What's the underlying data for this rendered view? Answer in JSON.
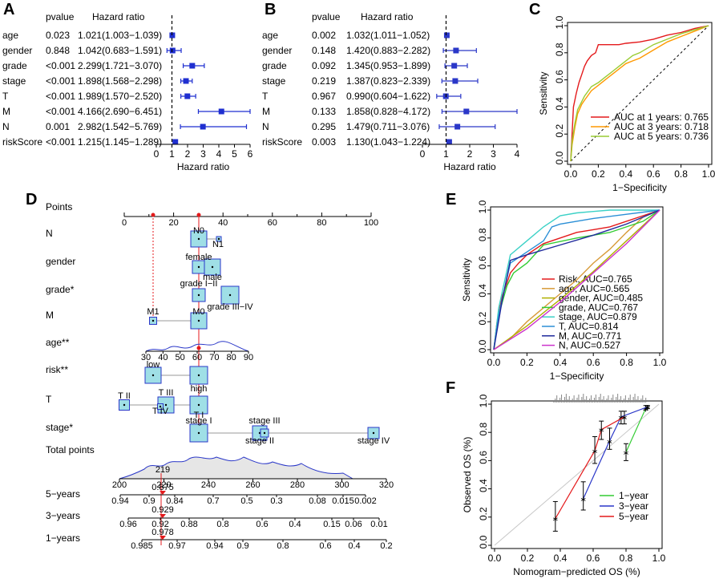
{
  "panels": {
    "A": "A",
    "B": "B",
    "C": "C",
    "D": "D",
    "E": "E",
    "F": "F"
  },
  "chart_data": [
    {
      "type": "forest",
      "panel": "A",
      "col_pvalue": "pvalue",
      "col_hr": "Hazard ratio",
      "xlabel": "Hazard ratio",
      "ticks": [
        0,
        1,
        2,
        3,
        4,
        5,
        6
      ],
      "xlim": [
        0,
        6
      ],
      "rows": [
        {
          "label": "age",
          "p": "0.023",
          "hr_text": "1.021(1.003−1.039)",
          "hr": 1.021,
          "lo": 1.003,
          "hi": 1.039
        },
        {
          "label": "gender",
          "p": "0.848",
          "hr_text": "1.042(0.683−1.591)",
          "hr": 1.042,
          "lo": 0.683,
          "hi": 1.591
        },
        {
          "label": "grade",
          "p": "<0.001",
          "hr_text": "2.299(1.721−3.070)",
          "hr": 2.299,
          "lo": 1.721,
          "hi": 3.07
        },
        {
          "label": "stage",
          "p": "<0.001",
          "hr_text": "1.898(1.568−2.298)",
          "hr": 1.898,
          "lo": 1.568,
          "hi": 2.298
        },
        {
          "label": "T",
          "p": "<0.001",
          "hr_text": "1.989(1.570−2.520)",
          "hr": 1.989,
          "lo": 1.57,
          "hi": 2.52
        },
        {
          "label": "M",
          "p": "<0.001",
          "hr_text": "4.166(2.690−6.451)",
          "hr": 4.166,
          "lo": 2.69,
          "hi": 6.451
        },
        {
          "label": "N",
          "p": "0.001",
          "hr_text": "2.982(1.542−5.769)",
          "hr": 2.982,
          "lo": 1.542,
          "hi": 5.769
        },
        {
          "label": "riskScore",
          "p": "<0.001",
          "hr_text": "1.215(1.145−1.289)",
          "hr": 1.215,
          "lo": 1.145,
          "hi": 1.289
        }
      ]
    },
    {
      "type": "forest",
      "panel": "B",
      "col_pvalue": "pvalue",
      "col_hr": "Hazard ratio",
      "xlabel": "Hazard ratio",
      "ticks": [
        0,
        1,
        2,
        3,
        4
      ],
      "xlim": [
        0,
        4
      ],
      "rows": [
        {
          "label": "age",
          "p": "0.002",
          "hr_text": "1.032(1.011−1.052)",
          "hr": 1.032,
          "lo": 1.011,
          "hi": 1.052
        },
        {
          "label": "gender",
          "p": "0.148",
          "hr_text": "1.420(0.883−2.282)",
          "hr": 1.42,
          "lo": 0.883,
          "hi": 2.282
        },
        {
          "label": "grade",
          "p": "0.092",
          "hr_text": "1.345(0.953−1.899)",
          "hr": 1.345,
          "lo": 0.953,
          "hi": 1.899
        },
        {
          "label": "stage",
          "p": "0.219",
          "hr_text": "1.387(0.823−2.339)",
          "hr": 1.387,
          "lo": 0.823,
          "hi": 2.339
        },
        {
          "label": "T",
          "p": "0.967",
          "hr_text": "0.990(0.604−1.622)",
          "hr": 0.99,
          "lo": 0.604,
          "hi": 1.622
        },
        {
          "label": "M",
          "p": "0.133",
          "hr_text": "1.858(0.828−4.172)",
          "hr": 1.858,
          "lo": 0.828,
          "hi": 4.172
        },
        {
          "label": "N",
          "p": "0.295",
          "hr_text": "1.479(0.711−3.076)",
          "hr": 1.479,
          "lo": 0.711,
          "hi": 3.076
        },
        {
          "label": "riskScore",
          "p": "0.003",
          "hr_text": "1.130(1.043−1.224)",
          "hr": 1.13,
          "lo": 1.043,
          "hi": 1.224
        }
      ]
    },
    {
      "type": "line",
      "panel": "C",
      "xlabel": "1−Specificity",
      "ylabel": "Sensitivity",
      "ticks": [
        "0.0",
        "0.2",
        "0.4",
        "0.6",
        "0.8",
        "1.0"
      ],
      "xlim": [
        0,
        1
      ],
      "ylim": [
        0,
        1
      ],
      "series": [
        {
          "name": "AUC at 1 years: 0.765",
          "color": "#e41a1c",
          "x": [
            0,
            0.01,
            0.02,
            0.04,
            0.06,
            0.08,
            0.1,
            0.12,
            0.15,
            0.18,
            0.2,
            0.25,
            0.3,
            0.35,
            0.4,
            0.5,
            0.6,
            0.7,
            0.8,
            0.9,
            1
          ],
          "y": [
            0,
            0.2,
            0.4,
            0.5,
            0.58,
            0.64,
            0.7,
            0.74,
            0.78,
            0.8,
            0.86,
            0.86,
            0.86,
            0.86,
            0.87,
            0.88,
            0.9,
            0.93,
            0.95,
            0.98,
            1
          ]
        },
        {
          "name": "AUC at 3 years: 0.718",
          "color": "#ff9900",
          "x": [
            0,
            0.01,
            0.03,
            0.05,
            0.08,
            0.1,
            0.15,
            0.2,
            0.25,
            0.3,
            0.35,
            0.4,
            0.45,
            0.5,
            0.6,
            0.7,
            0.8,
            0.9,
            1
          ],
          "y": [
            0,
            0.12,
            0.25,
            0.35,
            0.42,
            0.45,
            0.52,
            0.56,
            0.6,
            0.64,
            0.68,
            0.72,
            0.74,
            0.76,
            0.82,
            0.88,
            0.92,
            0.96,
            1
          ]
        },
        {
          "name": "AUC at 5 years: 0.736",
          "color": "#99cc33",
          "x": [
            0,
            0.01,
            0.03,
            0.05,
            0.08,
            0.1,
            0.15,
            0.2,
            0.25,
            0.3,
            0.35,
            0.4,
            0.45,
            0.5,
            0.6,
            0.7,
            0.8,
            0.9,
            1
          ],
          "y": [
            0,
            0.15,
            0.28,
            0.38,
            0.44,
            0.48,
            0.55,
            0.58,
            0.62,
            0.66,
            0.7,
            0.74,
            0.78,
            0.8,
            0.86,
            0.9,
            0.94,
            0.97,
            1
          ]
        }
      ]
    },
    {
      "type": "nomogram",
      "panel": "D",
      "rows": {
        "points": "Points",
        "N": "N",
        "gender": "gender",
        "grade": "grade*",
        "M": "M",
        "age": "age**",
        "risk": "risk**",
        "T": "T",
        "stage": "stage*",
        "total": "Total points",
        "y5": "5−years",
        "y3": "3−years",
        "y1": "1−years"
      },
      "points_ticks": [
        "0",
        "20",
        "40",
        "60",
        "80",
        "100"
      ],
      "age_ticks": [
        "30",
        "40",
        "50",
        "60",
        "70",
        "80",
        "90"
      ],
      "total_ticks": [
        "200",
        "220",
        "240",
        "260",
        "280",
        "300",
        "320"
      ],
      "y5_ticks": [
        "0.94",
        "0.9",
        "0.84",
        "0.7",
        "0.5",
        "0.3",
        "0.08",
        "0.015",
        "0.002"
      ],
      "y3_ticks": [
        "0.96",
        "0.92",
        "0.88",
        "0.8",
        "0.6",
        "0.4",
        "0.15",
        "0.06",
        "0.01"
      ],
      "y1_ticks": [
        "0.985",
        "0.97",
        "0.94",
        "0.9",
        "0.8",
        "0.6",
        "0.4",
        "0.2"
      ],
      "level_labels": {
        "N0": "N0",
        "N1": "N1",
        "female": "female",
        "male": "male",
        "grade_iii": "grade I−II",
        "grade_iiiiv": "grade III−IV",
        "M1": "M1",
        "M0": "M0",
        "low": "low",
        "high": "high",
        "TII": "T II",
        "TIII": "T III",
        "TIV": "T IV",
        "TI": "T I",
        "stageI": "stage I",
        "stageII": "stage II",
        "stageIII": "stage III",
        "stageIV": "stage IV"
      },
      "patient": {
        "total": "219",
        "y5": "0.875",
        "y3": "0.929",
        "y1": "0.978"
      }
    },
    {
      "type": "line",
      "panel": "E",
      "xlabel": "1−Specificity",
      "ylabel": "Sensitivity",
      "ticks": [
        "0.0",
        "0.2",
        "0.4",
        "0.6",
        "0.8",
        "1.0"
      ],
      "xlim": [
        0,
        1
      ],
      "ylim": [
        0,
        1
      ],
      "series": [
        {
          "name": "Risk, AUC=0.765",
          "color": "#e41a1c",
          "x": [
            0,
            0.02,
            0.05,
            0.08,
            0.1,
            0.15,
            0.2,
            0.3,
            0.4,
            0.5,
            0.6,
            0.7,
            0.8,
            0.9,
            1
          ],
          "y": [
            0,
            0.2,
            0.38,
            0.48,
            0.55,
            0.62,
            0.68,
            0.76,
            0.8,
            0.84,
            0.86,
            0.88,
            0.92,
            0.96,
            1
          ]
        },
        {
          "name": "age, AUC=0.565",
          "color": "#d79b3a",
          "x": [
            0,
            0.1,
            0.2,
            0.3,
            0.4,
            0.5,
            0.6,
            0.7,
            0.8,
            0.9,
            1
          ],
          "y": [
            0,
            0.08,
            0.2,
            0.3,
            0.4,
            0.5,
            0.62,
            0.72,
            0.84,
            0.95,
            1
          ]
        },
        {
          "name": "gender, AUC=0.485",
          "color": "#b0b000",
          "x": [
            0,
            0.2,
            0.4,
            0.6,
            0.8,
            1
          ],
          "y": [
            0,
            0.17,
            0.36,
            0.56,
            0.78,
            1
          ]
        },
        {
          "name": "grade, AUC=0.767",
          "color": "#33cc33",
          "x": [
            0,
            0.03,
            0.08,
            0.12,
            0.2,
            0.3,
            0.5,
            0.7,
            0.9,
            1
          ],
          "y": [
            0,
            0.25,
            0.46,
            0.55,
            0.62,
            0.75,
            0.8,
            0.84,
            0.92,
            1
          ]
        },
        {
          "name": "stage, AUC=0.879",
          "color": "#3bd1c6",
          "x": [
            0,
            0.03,
            0.1,
            0.2,
            0.3,
            0.4,
            0.5,
            0.6,
            0.7,
            0.8,
            1
          ],
          "y": [
            0,
            0.3,
            0.68,
            0.78,
            0.88,
            0.96,
            0.98,
            0.99,
            1,
            1,
            1
          ]
        },
        {
          "name": "T, AUC=0.814",
          "color": "#2a8fd6",
          "x": [
            0,
            0.03,
            0.1,
            0.2,
            0.3,
            0.35,
            0.4,
            0.6,
            0.8,
            1
          ],
          "y": [
            0,
            0.25,
            0.62,
            0.7,
            0.78,
            0.88,
            0.9,
            0.94,
            0.97,
            1
          ]
        },
        {
          "name": "M, AUC=0.771",
          "color": "#1f2a9c",
          "x": [
            0,
            0.05,
            0.1,
            0.2,
            0.4,
            0.6,
            0.8,
            1
          ],
          "y": [
            0,
            0.35,
            0.64,
            0.68,
            0.75,
            0.82,
            0.9,
            1
          ]
        },
        {
          "name": "N, AUC=0.527",
          "color": "#cc33cc",
          "x": [
            0,
            0.2,
            0.4,
            0.6,
            0.8,
            1
          ],
          "y": [
            0,
            0.15,
            0.34,
            0.55,
            0.76,
            1
          ]
        }
      ]
    },
    {
      "type": "scatter",
      "panel": "F",
      "xlabel": "Nomogram−predicted OS (%)",
      "ylabel": "Observed OS (%)",
      "ticks": [
        "0.0",
        "0.2",
        "0.4",
        "0.6",
        "0.8",
        "1.0"
      ],
      "xlim": [
        0,
        1
      ],
      "ylim": [
        0,
        1
      ],
      "series": [
        {
          "name": "1−year",
          "color": "#33cc33",
          "x": [
            0.8,
            0.92,
            0.93
          ],
          "y": [
            0.66,
            0.97,
            0.98
          ],
          "lo": [
            0.6,
            0.96,
            0.97
          ],
          "hi": [
            0.72,
            0.99,
            0.99
          ]
        },
        {
          "name": "3−year",
          "color": "#2a37c8",
          "x": [
            0.54,
            0.7,
            0.77,
            0.93
          ],
          "y": [
            0.33,
            0.74,
            0.91,
            0.98
          ],
          "lo": [
            0.25,
            0.68,
            0.86,
            0.97
          ],
          "hi": [
            0.45,
            0.83,
            0.95,
            0.99
          ]
        },
        {
          "name": "5−year",
          "color": "#e41a1c",
          "x": [
            0.37,
            0.61,
            0.65,
            0.79
          ],
          "y": [
            0.19,
            0.67,
            0.82,
            0.91
          ],
          "lo": [
            0.1,
            0.58,
            0.75,
            0.86
          ],
          "hi": [
            0.31,
            0.77,
            0.88,
            0.95
          ]
        }
      ]
    }
  ]
}
